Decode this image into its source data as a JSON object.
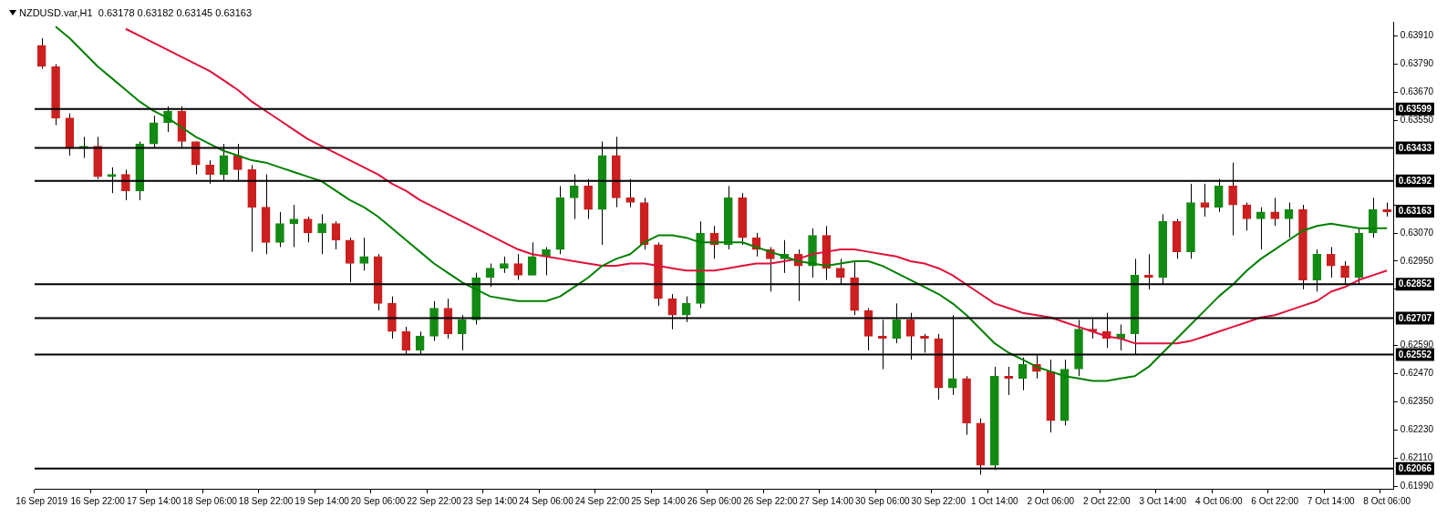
{
  "chart_data": {
    "type": "candlestick",
    "title": "NZDUSD.var,H1  0.63178 0.63182 0.63145 0.63163",
    "categories": [
      "16 Sep 2019",
      null,
      null,
      null,
      "16 Sep 22:00",
      null,
      null,
      null,
      "17 Sep 14:00",
      null,
      null,
      null,
      "18 Sep 06:00",
      null,
      null,
      null,
      "18 Sep 22:00",
      null,
      null,
      null,
      "19 Sep 14:00",
      null,
      null,
      null,
      "20 Sep 06:00",
      null,
      null,
      null,
      "22 Sep 22:00",
      null,
      null,
      null,
      "23 Sep 14:00",
      null,
      null,
      null,
      "24 Sep 06:00",
      null,
      null,
      null,
      "24 Sep 22:00",
      null,
      null,
      null,
      "25 Sep 14:00",
      null,
      null,
      null,
      "26 Sep 06:00",
      null,
      null,
      null,
      "26 Sep 22:00",
      null,
      null,
      null,
      "27 Sep 14:00",
      null,
      null,
      null,
      "30 Sep 06:00",
      null,
      null,
      null,
      "30 Sep 22:00",
      null,
      null,
      null,
      "1 Oct 14:00",
      null,
      null,
      null,
      "2 Oct 06:00",
      null,
      null,
      null,
      "2 Oct 22:00",
      null,
      null,
      null,
      "3 Oct 14:00",
      null,
      null,
      null,
      "4 Oct 06:00",
      null,
      null,
      null,
      "6 Oct 22:00",
      null,
      null,
      null,
      "7 Oct 14:00",
      null,
      null,
      null,
      "8 Oct 06:00"
    ],
    "ohlc": [
      [
        0.6387,
        0.639,
        0.6377,
        0.6378
      ],
      [
        0.6378,
        0.6379,
        0.6353,
        0.6356
      ],
      [
        0.6356,
        0.6358,
        0.634,
        0.6343
      ],
      [
        0.6343,
        0.6348,
        0.6339,
        0.6344
      ],
      [
        0.6344,
        0.6348,
        0.633,
        0.6331
      ],
      [
        0.6331,
        0.6335,
        0.6324,
        0.6332
      ],
      [
        0.6332,
        0.6334,
        0.6321,
        0.6325
      ],
      [
        0.6325,
        0.6346,
        0.6321,
        0.6345
      ],
      [
        0.6345,
        0.6357,
        0.6343,
        0.6354
      ],
      [
        0.6354,
        0.6361,
        0.635,
        0.6359
      ],
      [
        0.6359,
        0.6361,
        0.6343,
        0.6346
      ],
      [
        0.6346,
        0.6346,
        0.6332,
        0.6336
      ],
      [
        0.6336,
        0.6338,
        0.6328,
        0.6332
      ],
      [
        0.6332,
        0.6345,
        0.6329,
        0.634
      ],
      [
        0.634,
        0.6345,
        0.6329,
        0.6334
      ],
      [
        0.6334,
        0.6336,
        0.6299,
        0.6318
      ],
      [
        0.6318,
        0.6332,
        0.6298,
        0.6303
      ],
      [
        0.6303,
        0.6316,
        0.6301,
        0.6311
      ],
      [
        0.6311,
        0.6319,
        0.6301,
        0.6313
      ],
      [
        0.6313,
        0.6314,
        0.6303,
        0.6307
      ],
      [
        0.6307,
        0.6315,
        0.6298,
        0.6311
      ],
      [
        0.6311,
        0.6312,
        0.63,
        0.6304
      ],
      [
        0.6304,
        0.6305,
        0.6286,
        0.6294
      ],
      [
        0.6294,
        0.6305,
        0.6291,
        0.6297
      ],
      [
        0.6297,
        0.6298,
        0.6274,
        0.6277
      ],
      [
        0.6277,
        0.628,
        0.6262,
        0.6265
      ],
      [
        0.6265,
        0.6267,
        0.6255,
        0.6257
      ],
      [
        0.6257,
        0.6265,
        0.6255,
        0.6263
      ],
      [
        0.6263,
        0.6278,
        0.6261,
        0.6275
      ],
      [
        0.6275,
        0.6279,
        0.6262,
        0.6264
      ],
      [
        0.6264,
        0.6272,
        0.6257,
        0.627
      ],
      [
        0.627,
        0.629,
        0.6268,
        0.6288
      ],
      [
        0.6288,
        0.6294,
        0.6284,
        0.6292
      ],
      [
        0.6292,
        0.6297,
        0.629,
        0.6294
      ],
      [
        0.6294,
        0.6298,
        0.6287,
        0.6289
      ],
      [
        0.6289,
        0.6303,
        0.6289,
        0.6297
      ],
      [
        0.6297,
        0.6301,
        0.6289,
        0.63
      ],
      [
        0.63,
        0.6327,
        0.6298,
        0.6322
      ],
      [
        0.6322,
        0.6332,
        0.6313,
        0.6327
      ],
      [
        0.6327,
        0.633,
        0.6313,
        0.6317
      ],
      [
        0.6317,
        0.6346,
        0.6302,
        0.634
      ],
      [
        0.634,
        0.6348,
        0.6318,
        0.6322
      ],
      [
        0.6322,
        0.633,
        0.6318,
        0.632
      ],
      [
        0.632,
        0.6322,
        0.63,
        0.6302
      ],
      [
        0.6302,
        0.6303,
        0.6276,
        0.6279
      ],
      [
        0.6279,
        0.6281,
        0.6266,
        0.6272
      ],
      [
        0.6272,
        0.628,
        0.6269,
        0.6277
      ],
      [
        0.6277,
        0.6312,
        0.6275,
        0.6307
      ],
      [
        0.6307,
        0.631,
        0.6296,
        0.6302
      ],
      [
        0.6302,
        0.6327,
        0.63,
        0.6322
      ],
      [
        0.6322,
        0.6324,
        0.6302,
        0.6305
      ],
      [
        0.6305,
        0.6307,
        0.6297,
        0.63
      ],
      [
        0.63,
        0.6301,
        0.6282,
        0.6296
      ],
      [
        0.6296,
        0.6304,
        0.629,
        0.6298
      ],
      [
        0.6298,
        0.63,
        0.6278,
        0.6293
      ],
      [
        0.6293,
        0.6309,
        0.6288,
        0.6306
      ],
      [
        0.6306,
        0.631,
        0.6287,
        0.6292
      ],
      [
        0.6292,
        0.6296,
        0.6285,
        0.6288
      ],
      [
        0.6288,
        0.6295,
        0.6272,
        0.6274
      ],
      [
        0.6274,
        0.6275,
        0.6257,
        0.6263
      ],
      [
        0.6263,
        0.627,
        0.6249,
        0.6262
      ],
      [
        0.6262,
        0.6277,
        0.626,
        0.627
      ],
      [
        0.627,
        0.6273,
        0.6253,
        0.6263
      ],
      [
        0.6263,
        0.6264,
        0.6256,
        0.6262
      ],
      [
        0.6262,
        0.6264,
        0.6236,
        0.6241
      ],
      [
        0.6241,
        0.6272,
        0.6238,
        0.6245
      ],
      [
        0.6245,
        0.6246,
        0.6221,
        0.6226
      ],
      [
        0.6226,
        0.6228,
        0.6204,
        0.6208
      ],
      [
        0.6208,
        0.625,
        0.6206,
        0.6246
      ],
      [
        0.6246,
        0.625,
        0.6238,
        0.6245
      ],
      [
        0.6245,
        0.6254,
        0.624,
        0.6251
      ],
      [
        0.6251,
        0.6255,
        0.6245,
        0.6248
      ],
      [
        0.6248,
        0.6253,
        0.6222,
        0.6227
      ],
      [
        0.6227,
        0.6253,
        0.6225,
        0.6249
      ],
      [
        0.6249,
        0.627,
        0.6246,
        0.6266
      ],
      [
        0.6266,
        0.6271,
        0.6262,
        0.6265
      ],
      [
        0.6265,
        0.6273,
        0.6258,
        0.6262
      ],
      [
        0.6262,
        0.6268,
        0.6257,
        0.6264
      ],
      [
        0.6264,
        0.6296,
        0.6255,
        0.6289
      ],
      [
        0.6289,
        0.6298,
        0.6283,
        0.6288
      ],
      [
        0.6288,
        0.6315,
        0.6285,
        0.6312
      ],
      [
        0.6312,
        0.6313,
        0.6296,
        0.6299
      ],
      [
        0.6299,
        0.6328,
        0.6296,
        0.632
      ],
      [
        0.632,
        0.6328,
        0.6314,
        0.6318
      ],
      [
        0.6318,
        0.633,
        0.6316,
        0.6327
      ],
      [
        0.6327,
        0.6337,
        0.6306,
        0.6319
      ],
      [
        0.6319,
        0.632,
        0.6308,
        0.6313
      ],
      [
        0.6313,
        0.6318,
        0.63,
        0.6316
      ],
      [
        0.6316,
        0.6322,
        0.631,
        0.6313
      ],
      [
        0.6313,
        0.632,
        0.6305,
        0.6317
      ],
      [
        0.6317,
        0.6319,
        0.6283,
        0.6287
      ],
      [
        0.6287,
        0.63,
        0.6282,
        0.6298
      ],
      [
        0.6298,
        0.6301,
        0.6288,
        0.6293
      ],
      [
        0.6293,
        0.6295,
        0.6285,
        0.6288
      ],
      [
        0.6288,
        0.6309,
        0.6285,
        0.6307
      ],
      [
        0.6307,
        0.6322,
        0.6305,
        0.6317
      ],
      [
        0.6317,
        0.632,
        0.6314,
        0.6316
      ]
    ],
    "colors": [
      "#cc1f1f",
      "#cc1f1f",
      "#cc1f1f",
      "#138a13",
      "#cc1f1f",
      "#138a13",
      "#cc1f1f",
      "#138a13",
      "#138a13",
      "#138a13",
      "#cc1f1f",
      "#cc1f1f",
      "#cc1f1f",
      "#138a13",
      "#cc1f1f",
      "#cc1f1f",
      "#cc1f1f",
      "#138a13",
      "#138a13",
      "#cc1f1f",
      "#138a13",
      "#cc1f1f",
      "#cc1f1f",
      "#138a13",
      "#cc1f1f",
      "#cc1f1f",
      "#cc1f1f",
      "#138a13",
      "#138a13",
      "#cc1f1f",
      "#138a13",
      "#138a13",
      "#138a13",
      "#138a13",
      "#cc1f1f",
      "#138a13",
      "#138a13",
      "#138a13",
      "#138a13",
      "#cc1f1f",
      "#138a13",
      "#cc1f1f",
      "#cc1f1f",
      "#cc1f1f",
      "#cc1f1f",
      "#cc1f1f",
      "#138a13",
      "#138a13",
      "#cc1f1f",
      "#138a13",
      "#cc1f1f",
      "#cc1f1f",
      "#cc1f1f",
      "#138a13",
      "#cc1f1f",
      "#138a13",
      "#cc1f1f",
      "#cc1f1f",
      "#cc1f1f",
      "#cc1f1f",
      "#cc1f1f",
      "#138a13",
      "#cc1f1f",
      "#cc1f1f",
      "#cc1f1f",
      "#138a13",
      "#cc1f1f",
      "#cc1f1f",
      "#138a13",
      "#cc1f1f",
      "#138a13",
      "#cc1f1f",
      "#cc1f1f",
      "#138a13",
      "#138a13",
      "#cc1f1f",
      "#cc1f1f",
      "#138a13",
      "#138a13",
      "#cc1f1f",
      "#138a13",
      "#cc1f1f",
      "#138a13",
      "#cc1f1f",
      "#138a13",
      "#cc1f1f",
      "#cc1f1f",
      "#138a13",
      "#cc1f1f",
      "#138a13",
      "#cc1f1f",
      "#138a13",
      "#cc1f1f",
      "#cc1f1f",
      "#138a13",
      "#138a13",
      "#cc1f1f"
    ],
    "series": [
      {
        "type": "line",
        "color": "#008000",
        "values": [
          null,
          0.6395,
          0.639,
          0.6384,
          0.6378,
          0.6373,
          0.6368,
          0.6363,
          0.6359,
          0.6356,
          0.6352,
          0.6348,
          0.6345,
          0.6342,
          0.634,
          0.6338,
          0.6337,
          0.6335,
          0.6333,
          0.6331,
          0.6329,
          0.6325,
          0.6321,
          0.6318,
          0.6314,
          0.6309,
          0.6304,
          0.6299,
          0.6294,
          0.629,
          0.6286,
          0.6283,
          0.628,
          0.6279,
          0.6278,
          0.6278,
          0.6278,
          0.628,
          0.6284,
          0.6288,
          0.6293,
          0.6296,
          0.6298,
          0.6303,
          0.6306,
          0.6306,
          0.6305,
          0.6303,
          0.6303,
          0.6303,
          0.6303,
          0.6301,
          0.6299,
          0.6297,
          0.6295,
          0.6294,
          0.6293,
          0.6294,
          0.6295,
          0.6295,
          0.6293,
          0.629,
          0.6287,
          0.6284,
          0.6281,
          0.6277,
          0.6272,
          0.6266,
          0.626,
          0.6256,
          0.6253,
          0.625,
          0.6248,
          0.6246,
          0.6245,
          0.6244,
          0.6244,
          0.6245,
          0.6246,
          0.625,
          0.6256,
          0.6262,
          0.6268,
          0.6274,
          0.628,
          0.6285,
          0.6291,
          0.6296,
          0.63,
          0.6304,
          0.6308,
          0.631,
          0.6311,
          0.631,
          0.6309,
          0.6309,
          0.6309
        ]
      },
      {
        "type": "line",
        "color": "#e0103a",
        "values": [
          null,
          null,
          null,
          null,
          null,
          null,
          0.6394,
          0.6391,
          0.6388,
          0.6385,
          0.6382,
          0.6379,
          0.6376,
          0.6372,
          0.6368,
          0.6363,
          0.6359,
          0.6355,
          0.6351,
          0.6347,
          0.6344,
          0.6341,
          0.6338,
          0.6335,
          0.6332,
          0.6328,
          0.6325,
          0.6321,
          0.6318,
          0.6315,
          0.6312,
          0.6309,
          0.6306,
          0.6303,
          0.63,
          0.6298,
          0.6297,
          0.6296,
          0.6295,
          0.6294,
          0.6293,
          0.6293,
          0.6294,
          0.6294,
          0.6293,
          0.6292,
          0.6291,
          0.6291,
          0.6291,
          0.6292,
          0.6293,
          0.6294,
          0.6294,
          0.6295,
          0.6296,
          0.6298,
          0.6299,
          0.63,
          0.63,
          0.6299,
          0.6298,
          0.6297,
          0.6295,
          0.6294,
          0.6292,
          0.6289,
          0.6285,
          0.6281,
          0.6277,
          0.6275,
          0.6273,
          0.6272,
          0.6271,
          0.6269,
          0.6267,
          0.6265,
          0.6263,
          0.6262,
          0.626,
          0.626,
          0.626,
          0.626,
          0.6261,
          0.6263,
          0.6265,
          0.6267,
          0.6269,
          0.6271,
          0.6272,
          0.6274,
          0.6276,
          0.6278,
          0.6282,
          0.6284,
          0.6287,
          0.6289,
          0.6291
        ]
      }
    ],
    "ylim": [
      0.6198,
      0.6397
    ],
    "yticks": [
      {
        "value": 0.6199,
        "label": "0.61990"
      },
      {
        "value": 0.6211,
        "label": "0.62110"
      },
      {
        "value": 0.6223,
        "label": "0.62230"
      },
      {
        "value": 0.6235,
        "label": "0.62350"
      },
      {
        "value": 0.6247,
        "label": "0.62470"
      },
      {
        "value": 0.6259,
        "label": "0.62590"
      },
      {
        "value": 0.6283,
        "label": null
      },
      {
        "value": 0.6295,
        "label": "0.62950"
      },
      {
        "value": 0.6307,
        "label": "0.63070"
      },
      {
        "value": 0.6319,
        "label": null
      },
      {
        "value": 0.6355,
        "label": "0.63550"
      },
      {
        "value": 0.6367,
        "label": "0.63670"
      },
      {
        "value": 0.6379,
        "label": "0.63790"
      },
      {
        "value": 0.6391,
        "label": "0.63910"
      }
    ],
    "ref_lines": [
      {
        "axis": "y",
        "value": 0.63599,
        "label": "0.63599",
        "color": "#000000"
      },
      {
        "axis": "y",
        "value": 0.63433,
        "label": "0.63433",
        "color": "#000000"
      },
      {
        "axis": "y",
        "value": 0.63292,
        "label": "0.63292",
        "color": "#000000"
      },
      {
        "axis": "y",
        "value": 0.62852,
        "label": "0.62852",
        "color": "#000000"
      },
      {
        "axis": "y",
        "value": 0.62707,
        "label": "0.62707",
        "color": "#000000"
      },
      {
        "axis": "y",
        "value": 0.62552,
        "label": "0.62552",
        "color": "#000000"
      },
      {
        "axis": "y",
        "value": 0.62066,
        "label": "0.62066",
        "color": "#000000"
      }
    ],
    "annotations": [
      {
        "text": "0.63163",
        "y": 0.63163
      }
    ]
  }
}
